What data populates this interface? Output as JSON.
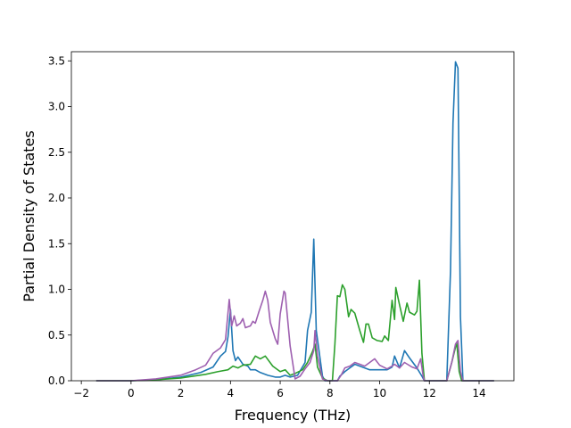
{
  "chart_data": {
    "type": "line",
    "xlabel": "Frequency (THz)",
    "ylabel": "Partial Density of States",
    "xlim": [
      -2.4,
      15.4
    ],
    "ylim": [
      0,
      3.6
    ],
    "xticks": [
      -2,
      0,
      2,
      4,
      6,
      8,
      10,
      12,
      14
    ],
    "xtick_labels": [
      "−2",
      "0",
      "2",
      "4",
      "6",
      "8",
      "10",
      "12",
      "14"
    ],
    "yticks": [
      0,
      0.5,
      1,
      1.5,
      2,
      2.5,
      3,
      3.5
    ],
    "ytick_labels": [
      "0.0",
      "0.5",
      "1.0",
      "1.5",
      "2.0",
      "2.5",
      "3.0",
      "3.5"
    ],
    "grid": false,
    "series": [
      {
        "color": "#1f77b4",
        "points": [
          [
            -1.4,
            0
          ],
          [
            0,
            0.0
          ],
          [
            1,
            0.01
          ],
          [
            2,
            0.04
          ],
          [
            2.8,
            0.09
          ],
          [
            3.3,
            0.15
          ],
          [
            3.6,
            0.27
          ],
          [
            3.8,
            0.32
          ],
          [
            3.9,
            0.48
          ],
          [
            4.0,
            0.78
          ],
          [
            4.1,
            0.33
          ],
          [
            4.2,
            0.22
          ],
          [
            4.3,
            0.26
          ],
          [
            4.5,
            0.18
          ],
          [
            4.7,
            0.16
          ],
          [
            4.8,
            0.12
          ],
          [
            5.0,
            0.12
          ],
          [
            5.2,
            0.09
          ],
          [
            5.5,
            0.06
          ],
          [
            5.8,
            0.04
          ],
          [
            6.0,
            0.04
          ],
          [
            6.2,
            0.06
          ],
          [
            6.4,
            0.04
          ],
          [
            6.7,
            0.06
          ],
          [
            7.0,
            0.2
          ],
          [
            7.1,
            0.55
          ],
          [
            7.25,
            0.75
          ],
          [
            7.35,
            1.55
          ],
          [
            7.45,
            0.55
          ],
          [
            7.6,
            0.25
          ],
          [
            7.7,
            0.05
          ],
          [
            7.8,
            0.0
          ],
          [
            8.3,
            0.0
          ],
          [
            8.4,
            0.05
          ],
          [
            8.6,
            0.1
          ],
          [
            8.8,
            0.14
          ],
          [
            9.0,
            0.18
          ],
          [
            9.3,
            0.15
          ],
          [
            9.6,
            0.12
          ],
          [
            10.0,
            0.12
          ],
          [
            10.3,
            0.12
          ],
          [
            10.5,
            0.15
          ],
          [
            10.6,
            0.27
          ],
          [
            10.8,
            0.14
          ],
          [
            11.0,
            0.33
          ],
          [
            11.2,
            0.25
          ],
          [
            11.5,
            0.14
          ],
          [
            11.7,
            0.05
          ],
          [
            11.8,
            0.0
          ],
          [
            12.7,
            0.0
          ],
          [
            12.85,
            1.2
          ],
          [
            12.95,
            2.82
          ],
          [
            13.05,
            3.49
          ],
          [
            13.15,
            3.42
          ],
          [
            13.25,
            0.7
          ],
          [
            13.35,
            0.0
          ],
          [
            14.6,
            0
          ]
        ]
      },
      {
        "color": "#2ca02c",
        "points": [
          [
            -1.4,
            0
          ],
          [
            0,
            0.0
          ],
          [
            1,
            0.01
          ],
          [
            2,
            0.03
          ],
          [
            3,
            0.07
          ],
          [
            3.5,
            0.1
          ],
          [
            3.9,
            0.12
          ],
          [
            4.1,
            0.16
          ],
          [
            4.3,
            0.14
          ],
          [
            4.5,
            0.17
          ],
          [
            4.8,
            0.18
          ],
          [
            5.0,
            0.27
          ],
          [
            5.2,
            0.24
          ],
          [
            5.4,
            0.27
          ],
          [
            5.7,
            0.16
          ],
          [
            6.0,
            0.1
          ],
          [
            6.2,
            0.12
          ],
          [
            6.4,
            0.06
          ],
          [
            6.6,
            0.08
          ],
          [
            6.9,
            0.12
          ],
          [
            7.1,
            0.2
          ],
          [
            7.3,
            0.32
          ],
          [
            7.4,
            0.4
          ],
          [
            7.5,
            0.15
          ],
          [
            7.7,
            0.03
          ],
          [
            7.9,
            0.0
          ],
          [
            8.1,
            0.0
          ],
          [
            8.2,
            0.4
          ],
          [
            8.3,
            0.93
          ],
          [
            8.4,
            0.92
          ],
          [
            8.5,
            1.05
          ],
          [
            8.6,
            1.0
          ],
          [
            8.75,
            0.7
          ],
          [
            8.85,
            0.78
          ],
          [
            9.0,
            0.74
          ],
          [
            9.2,
            0.55
          ],
          [
            9.35,
            0.42
          ],
          [
            9.45,
            0.62
          ],
          [
            9.55,
            0.62
          ],
          [
            9.7,
            0.47
          ],
          [
            9.9,
            0.44
          ],
          [
            10.1,
            0.43
          ],
          [
            10.2,
            0.49
          ],
          [
            10.35,
            0.44
          ],
          [
            10.5,
            0.88
          ],
          [
            10.6,
            0.67
          ],
          [
            10.65,
            1.02
          ],
          [
            10.8,
            0.83
          ],
          [
            10.95,
            0.65
          ],
          [
            11.1,
            0.85
          ],
          [
            11.2,
            0.75
          ],
          [
            11.4,
            0.72
          ],
          [
            11.5,
            0.76
          ],
          [
            11.6,
            1.1
          ],
          [
            11.7,
            0.3
          ],
          [
            11.8,
            0.0
          ],
          [
            12.7,
            0.0
          ],
          [
            12.9,
            0.2
          ],
          [
            13.1,
            0.42
          ],
          [
            13.2,
            0.1
          ],
          [
            13.3,
            0.0
          ],
          [
            14.6,
            0
          ]
        ]
      },
      {
        "color": "#9e60b0",
        "points": [
          [
            -1.4,
            0
          ],
          [
            0,
            0.0
          ],
          [
            1,
            0.02
          ],
          [
            2,
            0.06
          ],
          [
            2.6,
            0.12
          ],
          [
            3.0,
            0.17
          ],
          [
            3.3,
            0.3
          ],
          [
            3.6,
            0.36
          ],
          [
            3.8,
            0.45
          ],
          [
            3.95,
            0.89
          ],
          [
            4.05,
            0.6
          ],
          [
            4.15,
            0.71
          ],
          [
            4.25,
            0.6
          ],
          [
            4.4,
            0.63
          ],
          [
            4.5,
            0.68
          ],
          [
            4.6,
            0.58
          ],
          [
            4.8,
            0.6
          ],
          [
            4.9,
            0.65
          ],
          [
            5.0,
            0.63
          ],
          [
            5.15,
            0.76
          ],
          [
            5.3,
            0.88
          ],
          [
            5.4,
            0.98
          ],
          [
            5.5,
            0.88
          ],
          [
            5.6,
            0.64
          ],
          [
            5.8,
            0.46
          ],
          [
            5.9,
            0.4
          ],
          [
            6.0,
            0.73
          ],
          [
            6.15,
            0.98
          ],
          [
            6.2,
            0.96
          ],
          [
            6.4,
            0.38
          ],
          [
            6.6,
            0.02
          ],
          [
            6.8,
            0.05
          ],
          [
            7.0,
            0.13
          ],
          [
            7.2,
            0.2
          ],
          [
            7.35,
            0.33
          ],
          [
            7.4,
            0.55
          ],
          [
            7.5,
            0.27
          ],
          [
            7.7,
            0.02
          ],
          [
            7.9,
            0.0
          ],
          [
            8.3,
            0.0
          ],
          [
            8.45,
            0.06
          ],
          [
            8.6,
            0.14
          ],
          [
            8.8,
            0.16
          ],
          [
            9.0,
            0.2
          ],
          [
            9.2,
            0.18
          ],
          [
            9.4,
            0.16
          ],
          [
            9.6,
            0.2
          ],
          [
            9.8,
            0.24
          ],
          [
            10.0,
            0.17
          ],
          [
            10.3,
            0.13
          ],
          [
            10.5,
            0.16
          ],
          [
            10.6,
            0.18
          ],
          [
            10.8,
            0.14
          ],
          [
            11.0,
            0.2
          ],
          [
            11.3,
            0.15
          ],
          [
            11.5,
            0.13
          ],
          [
            11.65,
            0.24
          ],
          [
            11.75,
            0.05
          ],
          [
            11.8,
            0.0
          ],
          [
            12.7,
            0.0
          ],
          [
            12.9,
            0.2
          ],
          [
            13.05,
            0.4
          ],
          [
            13.15,
            0.44
          ],
          [
            13.25,
            0.1
          ],
          [
            13.35,
            0.0
          ],
          [
            14.6,
            0
          ]
        ]
      }
    ]
  }
}
